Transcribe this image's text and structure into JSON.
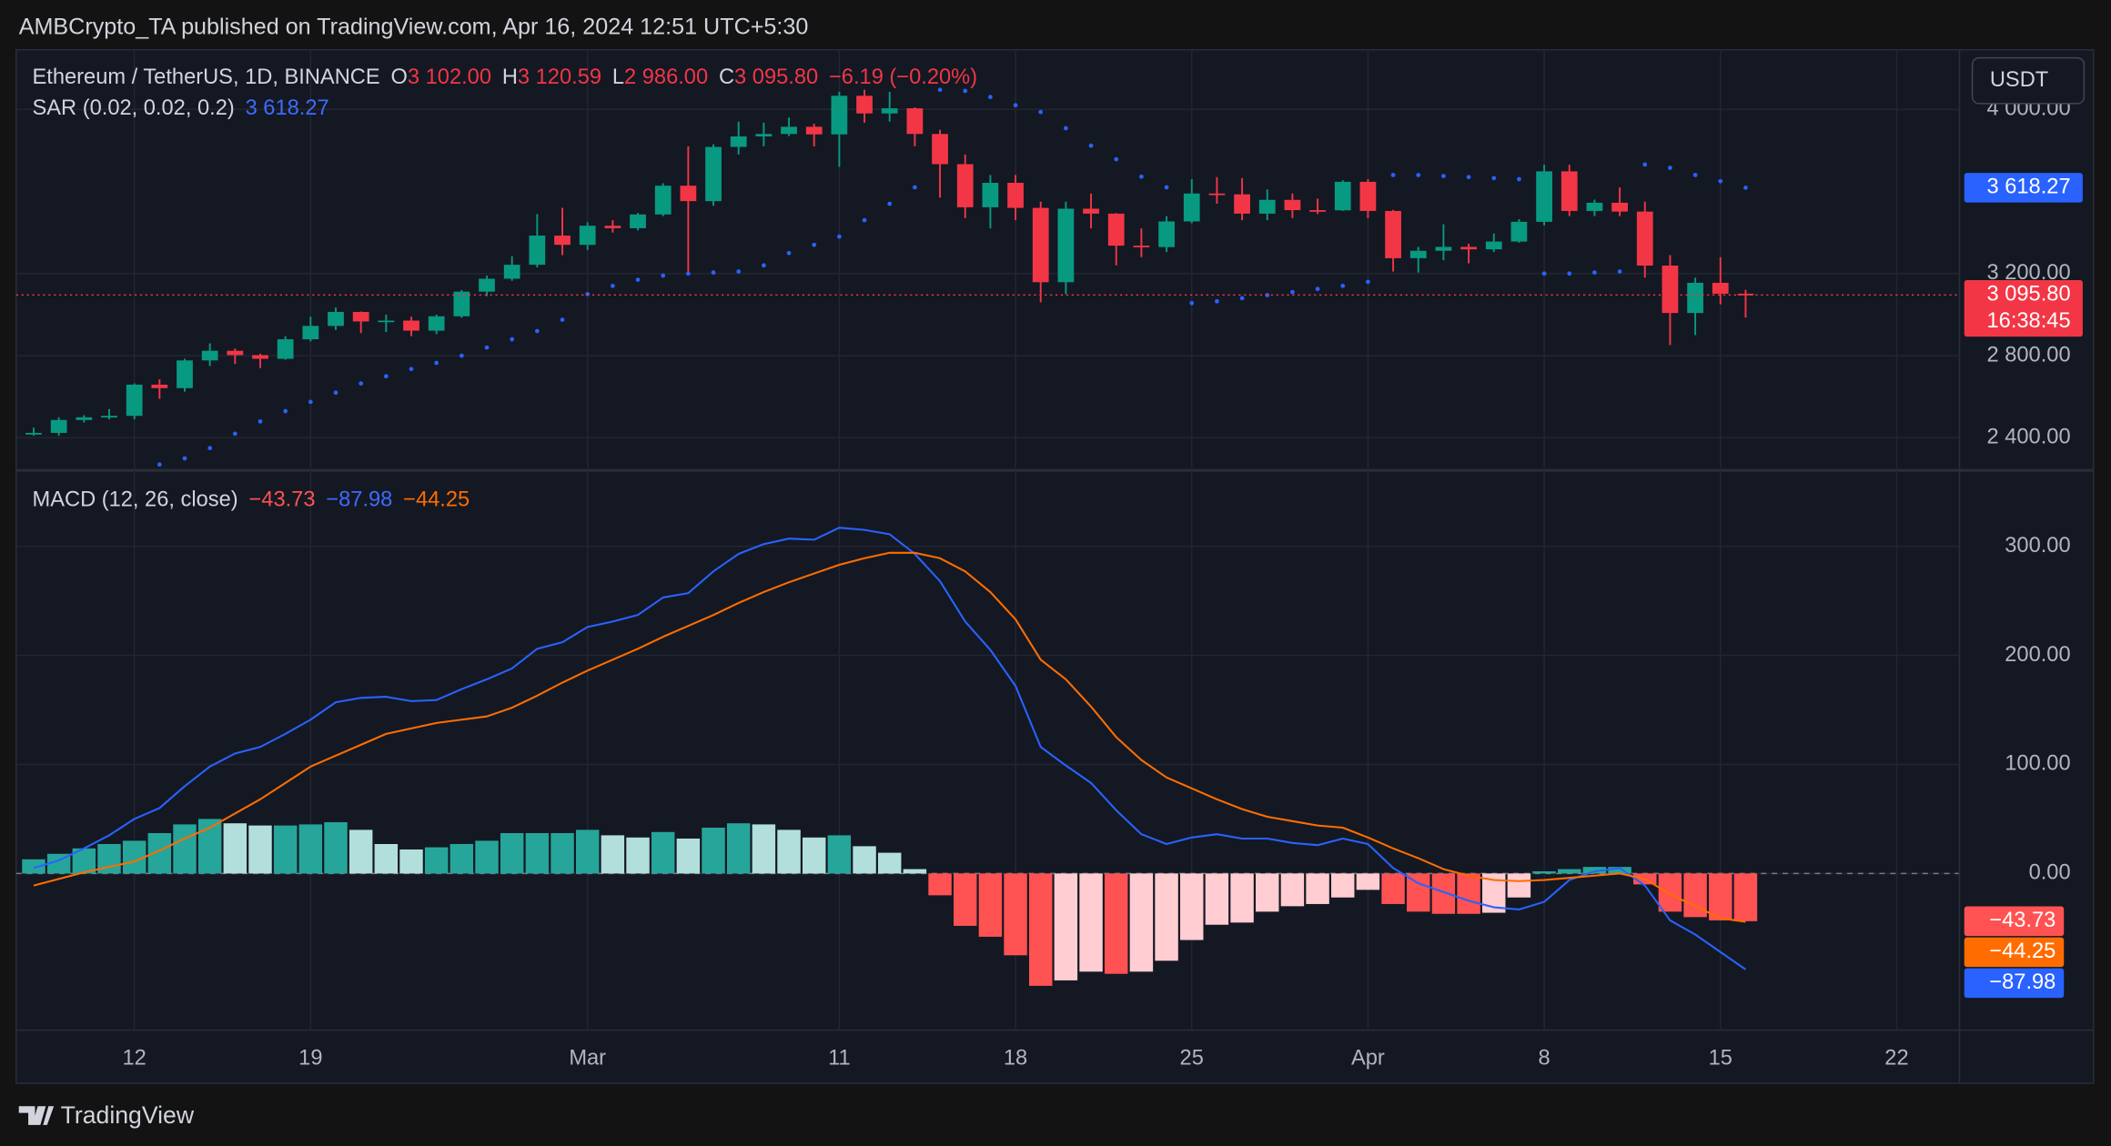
{
  "header": "AMBCrypto_TA published on TradingView.com, Apr 16, 2024 12:51 UTC+5:30",
  "brand": "TradingView",
  "currency_button": "USDT",
  "chart_data": [
    {
      "type": "candlestick",
      "title": "Ethereum / TetherUS, 1D, BINANCE",
      "ohlc_keys": [
        "O",
        "H",
        "L",
        "C"
      ],
      "ohlc_labels": [
        "3 102.00",
        "3 120.59",
        "2 986.00",
        "3 095.80"
      ],
      "change_label": "−6.19 (−0.20%)",
      "countdown": "16:38:45",
      "up_color": "#089981",
      "down_color": "#f23645",
      "open": [
        2420,
        2424,
        2487,
        2500,
        2507,
        2659,
        2642,
        2777,
        2824,
        2803,
        2785,
        2880,
        2945,
        3013,
        2967,
        2971,
        2922,
        2992,
        3112,
        3175,
        3243,
        3385,
        3340,
        3433,
        3421,
        3488,
        3628,
        3553,
        3817,
        3868,
        3880,
        3915,
        3878,
        4066,
        3980,
        4005,
        3880,
        3733,
        3523,
        3642,
        3520,
        3158,
        3516,
        3492,
        3336,
        3329,
        3454,
        3590,
        3586,
        3492,
        3559,
        3509,
        3508,
        3647,
        3505,
        3275,
        3311,
        3330,
        3318,
        3356,
        3452,
        3698,
        3505,
        3545,
        3502,
        3239,
        3008,
        3155,
        3102,
        null,
        null,
        null,
        null,
        null,
        null
      ],
      "high": [
        2450,
        2500,
        2510,
        2540,
        2665,
        2685,
        2785,
        2860,
        2835,
        2810,
        2895,
        2990,
        3035,
        3015,
        3000,
        2990,
        3000,
        3120,
        3190,
        3285,
        3490,
        3520,
        3450,
        3460,
        3495,
        3640,
        3820,
        3830,
        3940,
        3935,
        3960,
        3930,
        4085,
        4095,
        4085,
        4010,
        3900,
        3780,
        3680,
        3680,
        3550,
        3550,
        3590,
        3495,
        3420,
        3480,
        3660,
        3670,
        3665,
        3610,
        3590,
        3565,
        3655,
        3660,
        3510,
        3330,
        3440,
        3345,
        3395,
        3465,
        3730,
        3730,
        3560,
        3620,
        3550,
        3290,
        3180,
        3280,
        3120.59,
        null,
        null,
        null,
        null,
        null,
        null
      ],
      "low": [
        2410,
        2410,
        2475,
        2490,
        2490,
        2590,
        2625,
        2750,
        2760,
        2740,
        2780,
        2870,
        2925,
        2910,
        2915,
        2895,
        2905,
        2985,
        3090,
        3165,
        3230,
        3290,
        3315,
        3400,
        3410,
        3480,
        3200,
        3530,
        3780,
        3820,
        3870,
        3820,
        3720,
        3935,
        3940,
        3820,
        3570,
        3470,
        3420,
        3460,
        3060,
        3100,
        3420,
        3240,
        3280,
        3305,
        3445,
        3540,
        3460,
        3460,
        3470,
        3490,
        3505,
        3470,
        3210,
        3205,
        3265,
        3250,
        3305,
        3350,
        3435,
        3480,
        3480,
        3480,
        3180,
        2852,
        2900,
        3050,
        2986,
        null,
        null,
        null,
        null,
        null,
        null
      ],
      "close": [
        2424,
        2487,
        2500,
        2507,
        2659,
        2642,
        2777,
        2824,
        2803,
        2785,
        2880,
        2945,
        3013,
        2967,
        2971,
        2922,
        2992,
        3112,
        3175,
        3243,
        3385,
        3340,
        3433,
        3421,
        3488,
        3628,
        3553,
        3817,
        3868,
        3880,
        3915,
        3878,
        4066,
        3980,
        4005,
        3880,
        3733,
        3523,
        3642,
        3520,
        3158,
        3516,
        3492,
        3336,
        3329,
        3454,
        3590,
        3586,
        3492,
        3559,
        3509,
        3508,
        3647,
        3505,
        3275,
        3311,
        3330,
        3318,
        3356,
        3452,
        3698,
        3505,
        3545,
        3502,
        3239,
        3008,
        3155,
        3102,
        3095.8,
        null,
        null,
        null,
        null,
        null,
        null
      ],
      "series": [
        {
          "name": "SAR (0.02, 0.02, 0.2)",
          "color": "#2962ff",
          "value_label": "3 618.27",
          "values": [
            null,
            null,
            null,
            null,
            null,
            2270,
            2300,
            2350,
            2420,
            2480,
            2530,
            2575,
            2620,
            2665,
            2700,
            2735,
            2765,
            2800,
            2840,
            2880,
            2920,
            2975,
            3100,
            3140,
            3170,
            3190,
            3200,
            3205,
            3210,
            3240,
            3300,
            3340,
            3380,
            3460,
            3540,
            3620,
            4095,
            4090,
            4060,
            4020,
            3987,
            3908,
            3823,
            3757,
            3672,
            3620,
            3056,
            3065,
            3080,
            3095,
            3110,
            3125,
            3140,
            3160,
            3680,
            3680,
            3675,
            3670,
            3665,
            3660,
            3200,
            3200,
            3205,
            3210,
            3731,
            3715,
            3680,
            3650,
            3618.27,
            null,
            null,
            null,
            null,
            null,
            null
          ]
        }
      ],
      "ylim": [
        2245,
        4290
      ],
      "yticks": [
        {
          "value": 2400,
          "label": "2 400.00"
        },
        {
          "value": 2800,
          "label": "2 800.00"
        },
        {
          "value": 3200,
          "label": "3 200.00"
        },
        {
          "value": 4000,
          "label": "4 000.00"
        }
      ],
      "grid": true
    },
    {
      "type": "macd",
      "title": "MACD (12, 26, close)",
      "categories": [
        null,
        null,
        null,
        null,
        "12",
        null,
        null,
        null,
        null,
        null,
        null,
        "19",
        null,
        null,
        null,
        null,
        null,
        null,
        null,
        null,
        null,
        null,
        "Mar",
        null,
        null,
        null,
        null,
        null,
        null,
        null,
        null,
        null,
        "11",
        null,
        null,
        null,
        null,
        null,
        null,
        "18",
        null,
        null,
        null,
        null,
        null,
        null,
        "25",
        null,
        null,
        null,
        null,
        null,
        null,
        "Apr",
        null,
        null,
        null,
        null,
        null,
        null,
        "8",
        null,
        null,
        null,
        null,
        null,
        null,
        "15",
        null,
        null,
        null,
        null,
        null,
        null,
        "22"
      ],
      "series": [
        {
          "kind": "histogram",
          "colors": [
            "#26a69a",
            "#b2dfdb",
            "#ff5252",
            "#ffcdd2"
          ],
          "tag_color": "#ff5252",
          "value_label": "−43.73",
          "values": [
            13,
            18,
            23,
            27,
            30,
            37,
            45,
            50,
            46,
            44,
            44,
            45,
            47,
            40,
            27,
            22,
            24,
            27,
            30,
            37,
            37,
            37,
            40,
            35,
            33,
            38,
            32,
            42,
            46,
            45,
            40,
            33,
            35,
            25,
            19,
            4,
            -20,
            -48,
            -58,
            -75,
            -103,
            -98,
            -90,
            -92,
            -90,
            -80,
            -61,
            -47,
            -45,
            -35,
            -30,
            -28,
            -22,
            -15,
            -28,
            -35,
            -37,
            -37,
            -36,
            -22,
            2,
            4,
            6,
            6,
            -10,
            -35,
            -40,
            -43,
            -43.73,
            null,
            null,
            null,
            null,
            null,
            null
          ]
        },
        {
          "kind": "line",
          "color": "#2962ff",
          "value_label": "−87.98",
          "values": [
            5,
            12,
            23,
            35,
            50,
            60,
            80,
            98,
            110,
            116,
            128,
            141,
            157,
            161,
            162,
            158,
            159,
            169,
            178,
            188,
            206,
            212,
            226,
            231,
            237,
            253,
            257,
            277,
            293,
            302,
            307,
            306,
            317,
            315,
            311,
            293,
            268,
            231,
            205,
            172,
            116,
            99,
            83,
            58,
            36,
            27,
            33,
            36,
            32,
            32,
            28,
            26,
            32,
            27,
            5,
            -9,
            -17,
            -25,
            -31,
            -33,
            -26,
            -6,
            2,
            5,
            -11,
            -43,
            -56,
            -72,
            -87.98,
            null,
            null,
            null,
            null,
            null,
            null
          ]
        },
        {
          "kind": "line",
          "color": "#ff6d00",
          "value_label": "−44.25",
          "values": [
            -11,
            -5,
            1,
            6,
            11,
            21,
            32,
            42,
            55,
            68,
            83,
            98,
            108,
            118,
            128,
            133,
            138,
            141,
            144,
            152,
            163,
            175,
            186,
            196,
            206,
            217,
            227,
            237,
            248,
            258,
            267,
            275,
            283,
            289,
            294,
            294,
            289,
            277,
            258,
            233,
            196,
            178,
            153,
            125,
            104,
            88,
            78,
            68,
            59,
            52,
            48,
            44,
            42,
            33,
            23,
            14,
            4,
            -2,
            -6,
            -7,
            -6,
            -4,
            -2,
            0,
            -5,
            -19,
            -30,
            -41,
            -44.25,
            null,
            null,
            null,
            null,
            null,
            null
          ]
        }
      ],
      "ylim": [
        -143,
        369
      ],
      "yticks": [
        {
          "value": 0,
          "label": "0.00"
        },
        {
          "value": 100,
          "label": "100.00"
        },
        {
          "value": 200,
          "label": "200.00"
        },
        {
          "value": 300,
          "label": "300.00"
        }
      ],
      "grid": true
    }
  ]
}
